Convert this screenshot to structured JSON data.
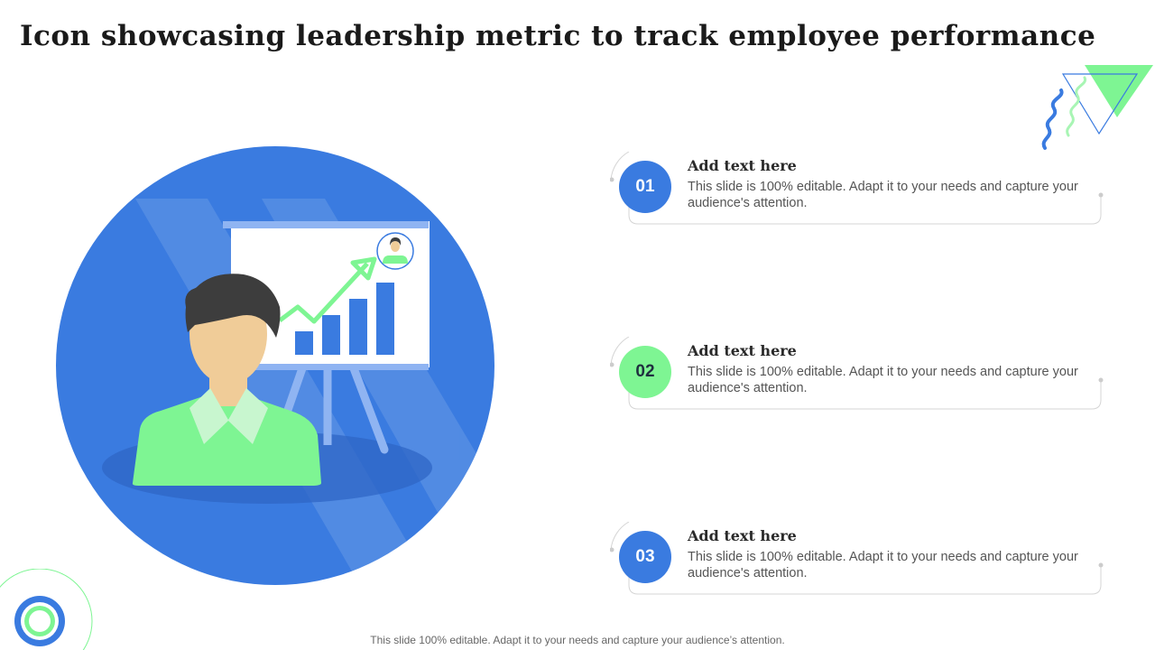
{
  "title": "Icon showcasing leadership metric to track employee performance",
  "colors": {
    "primary_blue": "#3a7be0",
    "accent_green": "#7ef593",
    "skin": "#f0cc98",
    "hair": "#3d3d3d"
  },
  "items": [
    {
      "number": "01",
      "heading": "Add text here",
      "text": "This slide is 100% editable. Adapt it to your needs and capture your audience's attention.",
      "badge_color": "blue"
    },
    {
      "number": "02",
      "heading": "Add text here",
      "text": "This slide is 100% editable. Adapt it to your needs and capture your audience's attention.",
      "badge_color": "green"
    },
    {
      "number": "03",
      "heading": "Add text here",
      "text": "This slide is 100% editable. Adapt it to your needs and capture your audience's attention.",
      "badge_color": "blue"
    }
  ],
  "footer": "This slide 100% editable. Adapt it to your needs and capture your audience’s attention.",
  "illustration": {
    "name": "leadership-presentation-icon",
    "bar_values": [
      1,
      2,
      3,
      4
    ]
  }
}
